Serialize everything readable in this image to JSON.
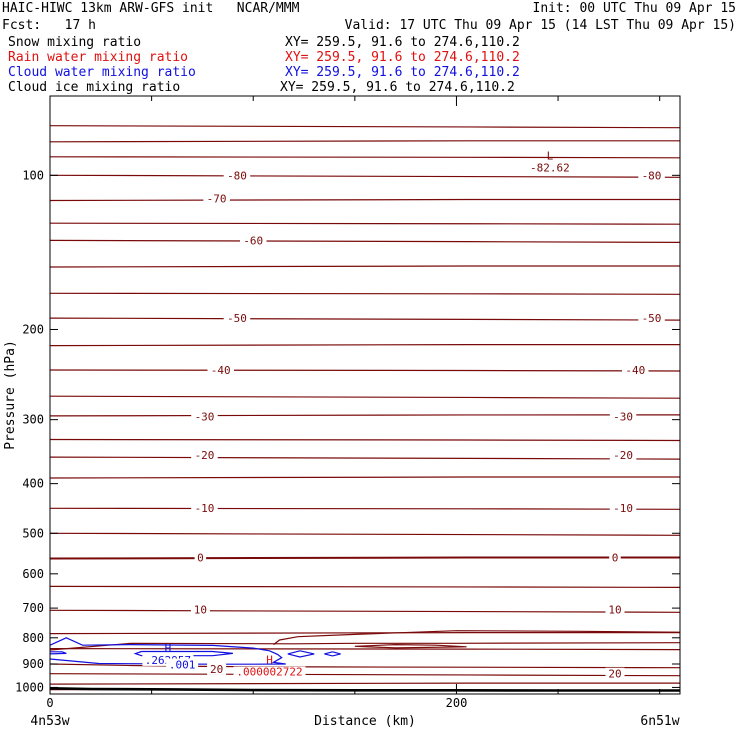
{
  "header": {
    "title_left": "HAIC-HIWC 13km ARW-GFS init   NCAR/MMM",
    "init": "Init: 00 UTC Thu 09 Apr 15",
    "fcst": "Fcst:   17 h",
    "valid": "Valid: 17 UTC Thu 09 Apr 15 (14 LST Thu 09 Apr 15)",
    "fields": [
      {
        "name": "Snow mixing ratio",
        "xy": "XY= 259.5, 91.6 to 274.6,110.2",
        "color": "#000000"
      },
      {
        "name": "Rain water mixing ratio",
        "xy": "XY= 259.5, 91.6 to 274.6,110.2",
        "color": "#e01010"
      },
      {
        "name": "Cloud water mixing ratio",
        "xy": "XY= 259.5, 91.6 to 274.6,110.2",
        "color": "#1010e0"
      },
      {
        "name": "Cloud ice mixing ratio",
        "xy": "XY= 259.5, 91.6 to 274.6,110.2",
        "color": "#000000"
      }
    ]
  },
  "chart_data": {
    "type": "contour",
    "xlabel": "Distance (km)",
    "ylabel": "Pressure (hPa)",
    "xlim": [
      0,
      310
    ],
    "ylim": [
      1030,
      70
    ],
    "y_scale": "log",
    "x_ticks": [
      0,
      200
    ],
    "x_minor_ticks": [
      50,
      100,
      150,
      250,
      300
    ],
    "y_ticks": [
      100,
      200,
      300,
      400,
      500,
      600,
      700,
      800,
      900,
      1000
    ],
    "x_endpoint_labels": {
      "left": "4n53w",
      "right": "6n51w"
    },
    "temperature_color": "#7a0a0a",
    "isotherms": [
      {
        "p": 80,
        "label": null
      },
      {
        "p": 86,
        "label": null
      },
      {
        "p": 92,
        "label": null
      },
      {
        "p": 100,
        "label": "-80"
      },
      {
        "p": 112,
        "label": "-70"
      },
      {
        "p": 124,
        "label": null
      },
      {
        "p": 134,
        "label": "-60"
      },
      {
        "p": 151,
        "label": null
      },
      {
        "p": 170,
        "label": null
      },
      {
        "p": 190,
        "label": "-50"
      },
      {
        "p": 215,
        "label": null
      },
      {
        "p": 240,
        "label": "-40"
      },
      {
        "p": 270,
        "label": null
      },
      {
        "p": 295,
        "label": "-30"
      },
      {
        "p": 328,
        "label": null
      },
      {
        "p": 355,
        "label": "-20"
      },
      {
        "p": 390,
        "label": null
      },
      {
        "p": 447,
        "label": "-10"
      },
      {
        "p": 500,
        "label": null
      },
      {
        "p": 560,
        "label": "0"
      },
      {
        "p": 635,
        "label": null
      },
      {
        "p": 707,
        "label": "10"
      },
      {
        "p": 785,
        "label": null
      },
      {
        "p": 840,
        "label": null
      },
      {
        "p": 940,
        "label": "20"
      },
      {
        "p": 985,
        "label": null
      },
      {
        "p": 1010,
        "label": null
      }
    ],
    "isotherm_labels": [
      {
        "text": "-80",
        "x": 92,
        "p": 100
      },
      {
        "text": "-80",
        "x": 296,
        "p": 100
      },
      {
        "text": "-70",
        "x": 82,
        "p": 111
      },
      {
        "text": "-60",
        "x": 100,
        "p": 134
      },
      {
        "text": "-50",
        "x": 92,
        "p": 190
      },
      {
        "text": "-50",
        "x": 296,
        "p": 190
      },
      {
        "text": "-40",
        "x": 84,
        "p": 240
      },
      {
        "text": "-40",
        "x": 288,
        "p": 240
      },
      {
        "text": "-30",
        "x": 76,
        "p": 296
      },
      {
        "text": "-30",
        "x": 282,
        "p": 296
      },
      {
        "text": "-20",
        "x": 76,
        "p": 352
      },
      {
        "text": "-20",
        "x": 282,
        "p": 352
      },
      {
        "text": "-10",
        "x": 76,
        "p": 446
      },
      {
        "text": "-10",
        "x": 282,
        "p": 446
      },
      {
        "text": "0",
        "x": 74,
        "p": 557
      },
      {
        "text": "0",
        "x": 278,
        "p": 557
      },
      {
        "text": "10",
        "x": 74,
        "p": 705
      },
      {
        "text": "10",
        "x": 278,
        "p": 705
      },
      {
        "text": "20",
        "x": 82,
        "p": 920
      },
      {
        "text": "20",
        "x": 278,
        "p": 940
      }
    ],
    "extrema": [
      {
        "kind": "L",
        "value": "-82.62",
        "x": 246,
        "p": 94,
        "color": "#7a0a0a"
      },
      {
        "kind": "H",
        "value": ".262957",
        "x": 58,
        "p": 860,
        "color": "#1010e0"
      },
      {
        "kind": "H",
        "value": ".000002722",
        "x": 108,
        "p": 906,
        "color": "#e01010"
      }
    ],
    "cloud_labels": [
      {
        "text": ".001",
        "x": 65,
        "p": 902,
        "color": "#1010e0"
      }
    ],
    "surface_pressure": [
      [
        0,
        1004
      ],
      [
        20,
        1007
      ],
      [
        60,
        1009
      ],
      [
        100,
        1012
      ],
      [
        150,
        1013
      ],
      [
        200,
        1013
      ],
      [
        250,
        1014
      ],
      [
        310,
        1014
      ]
    ],
    "cloud_water_contours": [
      [
        [
          0,
          827
        ],
        [
          8,
          800
        ],
        [
          16,
          827
        ],
        [
          40,
          825
        ],
        [
          80,
          828
        ],
        [
          100,
          838
        ],
        [
          108,
          848
        ],
        [
          112,
          862
        ],
        [
          114,
          875
        ],
        [
          110,
          893
        ],
        [
          116,
          900
        ],
        [
          100,
          901
        ],
        [
          80,
          901
        ],
        [
          60,
          900
        ],
        [
          40,
          899
        ],
        [
          24,
          898
        ],
        [
          0,
          880
        ]
      ],
      [
        [
          45,
          851
        ],
        [
          80,
          851
        ],
        [
          90,
          858
        ],
        [
          80,
          867
        ],
        [
          45,
          867
        ],
        [
          42,
          859
        ],
        [
          45,
          851
        ]
      ],
      [
        [
          0,
          852
        ],
        [
          6,
          852
        ],
        [
          8,
          858
        ],
        [
          0,
          860
        ]
      ],
      [
        [
          123,
          848
        ],
        [
          130,
          860
        ],
        [
          123,
          872
        ],
        [
          117,
          860
        ],
        [
          123,
          848
        ]
      ],
      [
        [
          139,
          852
        ],
        [
          143,
          860
        ],
        [
          139,
          868
        ],
        [
          135,
          860
        ],
        [
          139,
          852
        ]
      ]
    ],
    "warm_layer_contours": [
      [
        [
          0,
          845
        ],
        [
          40,
          820
        ],
        [
          120,
          822
        ],
        [
          150,
          820
        ],
        [
          200,
          820
        ],
        [
          310,
          818
        ]
      ],
      [
        [
          110,
          825
        ],
        [
          113,
          808
        ],
        [
          122,
          796
        ],
        [
          150,
          788
        ],
        [
          200,
          775
        ],
        [
          260,
          777
        ],
        [
          310,
          780
        ]
      ],
      [
        [
          150,
          831
        ],
        [
          170,
          825
        ],
        [
          190,
          827
        ],
        [
          205,
          833
        ],
        [
          170,
          837
        ],
        [
          150,
          831
        ]
      ],
      [
        [
          0,
          900
        ],
        [
          40,
          906
        ],
        [
          80,
          910
        ],
        [
          130,
          912
        ],
        [
          200,
          913
        ],
        [
          310,
          915
        ]
      ]
    ]
  }
}
